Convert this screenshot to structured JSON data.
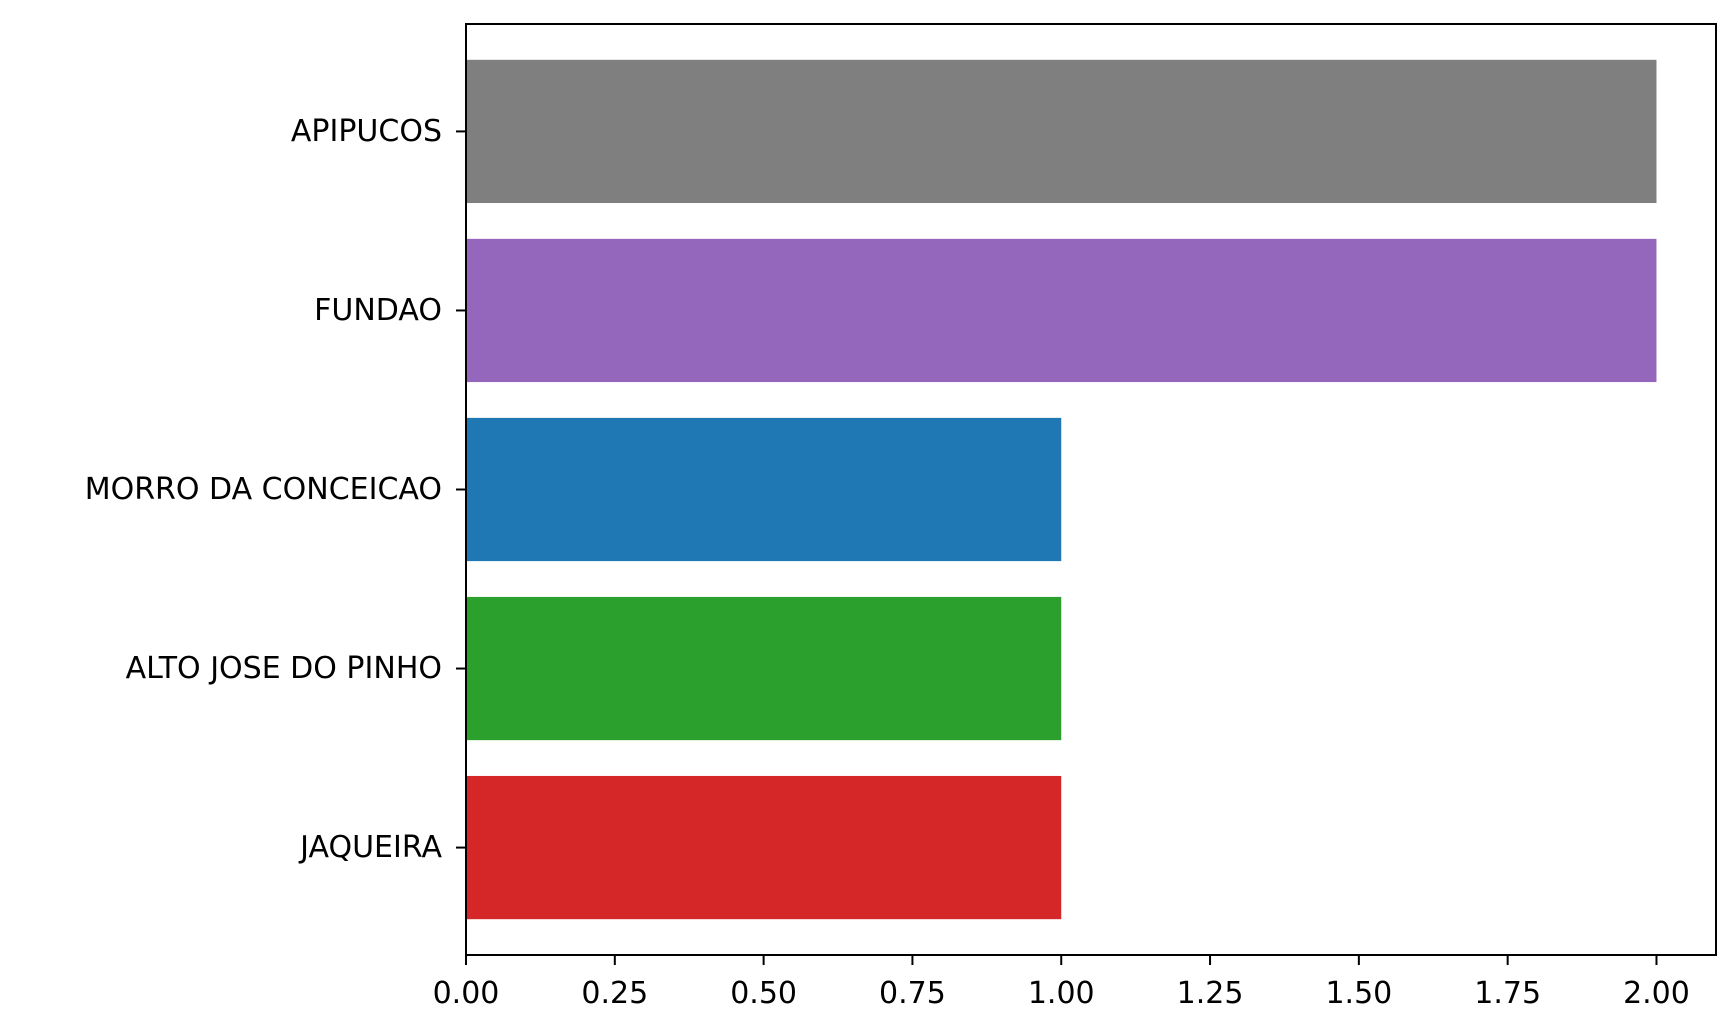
{
  "chart_data": {
    "type": "bar",
    "orientation": "horizontal",
    "title": "",
    "xlabel": "",
    "ylabel": "",
    "categories": [
      "APIPUCOS",
      "FUNDAO",
      "MORRO DA CONCEICAO",
      "ALTO JOSE DO PINHO",
      "JAQUEIRA"
    ],
    "values": [
      2,
      2,
      1,
      1,
      1
    ],
    "colors": [
      "#7f7f7f",
      "#9467bd",
      "#1f77b4",
      "#2ca02c",
      "#d62728"
    ],
    "xlim": [
      0,
      2.1
    ],
    "x_ticks": [
      0,
      0.25,
      0.5,
      0.75,
      1.0,
      1.25,
      1.5,
      1.75,
      2.0
    ],
    "x_tick_labels": [
      "0.00",
      "0.25",
      "0.50",
      "0.75",
      "1.00",
      "1.25",
      "1.50",
      "1.75",
      "2.00"
    ],
    "grid": false,
    "legend": "none"
  }
}
